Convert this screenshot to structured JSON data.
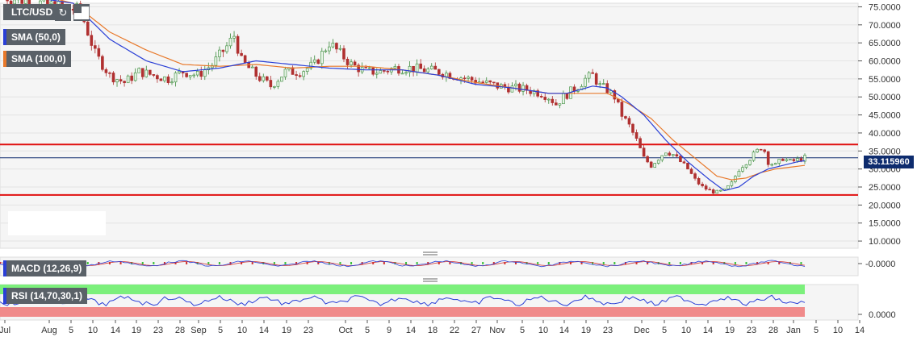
{
  "header": {
    "pair": "LTC/USD",
    "sma50": "SMA (50,0)",
    "sma100": "SMA (100,0)",
    "macd": "MACD (12,26,9)",
    "rsi": "RSI (14,70,30,1)",
    "refresh_icon": "refresh-icon",
    "chart_type_icon": "chart-type-icon"
  },
  "colors": {
    "sma50": "#2a3fd6",
    "sma100": "#e8792b",
    "support_resistance": "#e01010",
    "current_price_line": "#0e2c6e",
    "candle_up": "#3a8a3a",
    "candle_down": "#b03030",
    "rsi_overbought": "#7cf07c",
    "rsi_oversold": "#f08a8a"
  },
  "chart_data": {
    "type": "candlestick",
    "pair": "LTC/USD",
    "current_price": "33.115960",
    "y_ticks": [
      "75.0000",
      "70.0000",
      "65.0000",
      "60.0000",
      "55.0000",
      "50.0000",
      "45.0000",
      "40.0000",
      "35.0000",
      "30.0000",
      "25.0000",
      "20.0000",
      "15.0000",
      "10.0000"
    ],
    "ylim": [
      8,
      76
    ],
    "x_ticks": [
      "Jul",
      "Aug",
      "5",
      "10",
      "14",
      "19",
      "23",
      "28",
      "Sep",
      "5",
      "10",
      "14",
      "19",
      "23",
      "Oct",
      "5",
      "9",
      "14",
      "18",
      "22",
      "27",
      "Nov",
      "5",
      "10",
      "14",
      "19",
      "23",
      "Dec",
      "5",
      "10",
      "14",
      "19",
      "23",
      "28",
      "Jan",
      "5",
      "10",
      "14"
    ],
    "horizontal_levels": [
      36.8,
      22.8
    ],
    "close_path": [
      [
        0,
        78
      ],
      [
        22,
        74
      ],
      [
        26,
        62
      ],
      [
        30,
        56
      ],
      [
        34,
        54
      ],
      [
        38,
        57
      ],
      [
        42,
        56
      ],
      [
        46,
        55
      ],
      [
        50,
        57
      ],
      [
        54,
        56
      ],
      [
        58,
        59
      ],
      [
        62,
        64
      ],
      [
        64,
        67
      ],
      [
        66,
        60
      ],
      [
        70,
        56
      ],
      [
        74,
        53
      ],
      [
        78,
        57
      ],
      [
        82,
        57
      ],
      [
        86,
        59
      ],
      [
        90,
        65
      ],
      [
        93,
        62
      ],
      [
        96,
        59
      ],
      [
        100,
        57
      ],
      [
        104,
        57
      ],
      [
        108,
        58
      ],
      [
        112,
        58
      ],
      [
        116,
        57.5
      ],
      [
        120,
        57
      ],
      [
        124,
        56
      ],
      [
        128,
        55
      ],
      [
        132,
        54
      ],
      [
        136,
        53
      ],
      [
        140,
        52.5
      ],
      [
        144,
        52
      ],
      [
        148,
        51
      ],
      [
        150,
        50
      ],
      [
        152,
        48
      ],
      [
        154,
        50
      ],
      [
        158,
        53
      ],
      [
        160,
        55
      ],
      [
        162,
        56
      ],
      [
        164,
        53
      ],
      [
        166,
        52
      ],
      [
        168,
        50
      ],
      [
        170,
        45
      ],
      [
        172,
        42
      ],
      [
        174,
        38
      ],
      [
        176,
        33
      ],
      [
        178,
        31
      ],
      [
        180,
        33
      ],
      [
        182,
        35
      ],
      [
        184,
        34
      ],
      [
        186,
        32
      ],
      [
        188,
        30
      ],
      [
        190,
        27
      ],
      [
        192,
        25
      ],
      [
        194,
        24
      ],
      [
        196,
        23.5
      ],
      [
        198,
        24
      ],
      [
        200,
        26
      ],
      [
        202,
        30
      ],
      [
        204,
        32
      ],
      [
        206,
        34
      ],
      [
        208,
        36
      ],
      [
        209,
        35
      ],
      [
        210,
        32
      ],
      [
        212,
        31
      ],
      [
        214,
        33
      ],
      [
        216,
        32
      ],
      [
        218,
        32.5
      ],
      [
        220,
        33.1
      ]
    ],
    "sma50": [
      [
        0,
        79
      ],
      [
        20,
        76
      ],
      [
        30,
        66
      ],
      [
        40,
        60
      ],
      [
        50,
        57
      ],
      [
        60,
        58
      ],
      [
        70,
        60
      ],
      [
        80,
        59
      ],
      [
        90,
        58
      ],
      [
        100,
        57.5
      ],
      [
        110,
        57.5
      ],
      [
        120,
        56
      ],
      [
        130,
        53.5
      ],
      [
        140,
        52.5
      ],
      [
        150,
        51
      ],
      [
        155,
        51
      ],
      [
        162,
        53
      ],
      [
        166,
        52.5
      ],
      [
        170,
        50
      ],
      [
        176,
        45
      ],
      [
        182,
        38
      ],
      [
        188,
        32
      ],
      [
        194,
        27
      ],
      [
        198,
        24
      ],
      [
        202,
        25
      ],
      [
        206,
        28
      ],
      [
        210,
        30
      ],
      [
        214,
        31
      ],
      [
        218,
        32
      ],
      [
        220,
        32.3
      ]
    ],
    "sma100": [
      [
        0,
        81
      ],
      [
        20,
        76
      ],
      [
        30,
        68
      ],
      [
        40,
        63
      ],
      [
        50,
        59
      ],
      [
        60,
        58.5
      ],
      [
        70,
        59
      ],
      [
        80,
        58
      ],
      [
        90,
        58.5
      ],
      [
        100,
        58.5
      ],
      [
        110,
        57.5
      ],
      [
        120,
        56
      ],
      [
        130,
        54
      ],
      [
        140,
        52.5
      ],
      [
        150,
        51
      ],
      [
        160,
        51
      ],
      [
        166,
        51
      ],
      [
        172,
        48
      ],
      [
        178,
        44
      ],
      [
        184,
        38
      ],
      [
        190,
        33
      ],
      [
        196,
        28
      ],
      [
        200,
        27
      ],
      [
        204,
        27.5
      ],
      [
        208,
        29
      ],
      [
        212,
        30
      ],
      [
        216,
        30.5
      ],
      [
        220,
        31
      ]
    ],
    "macd_ticks": [
      "-0.0000"
    ],
    "rsi_ticks": [
      "0.0000"
    ],
    "rsi_levels": [
      70,
      30
    ]
  }
}
